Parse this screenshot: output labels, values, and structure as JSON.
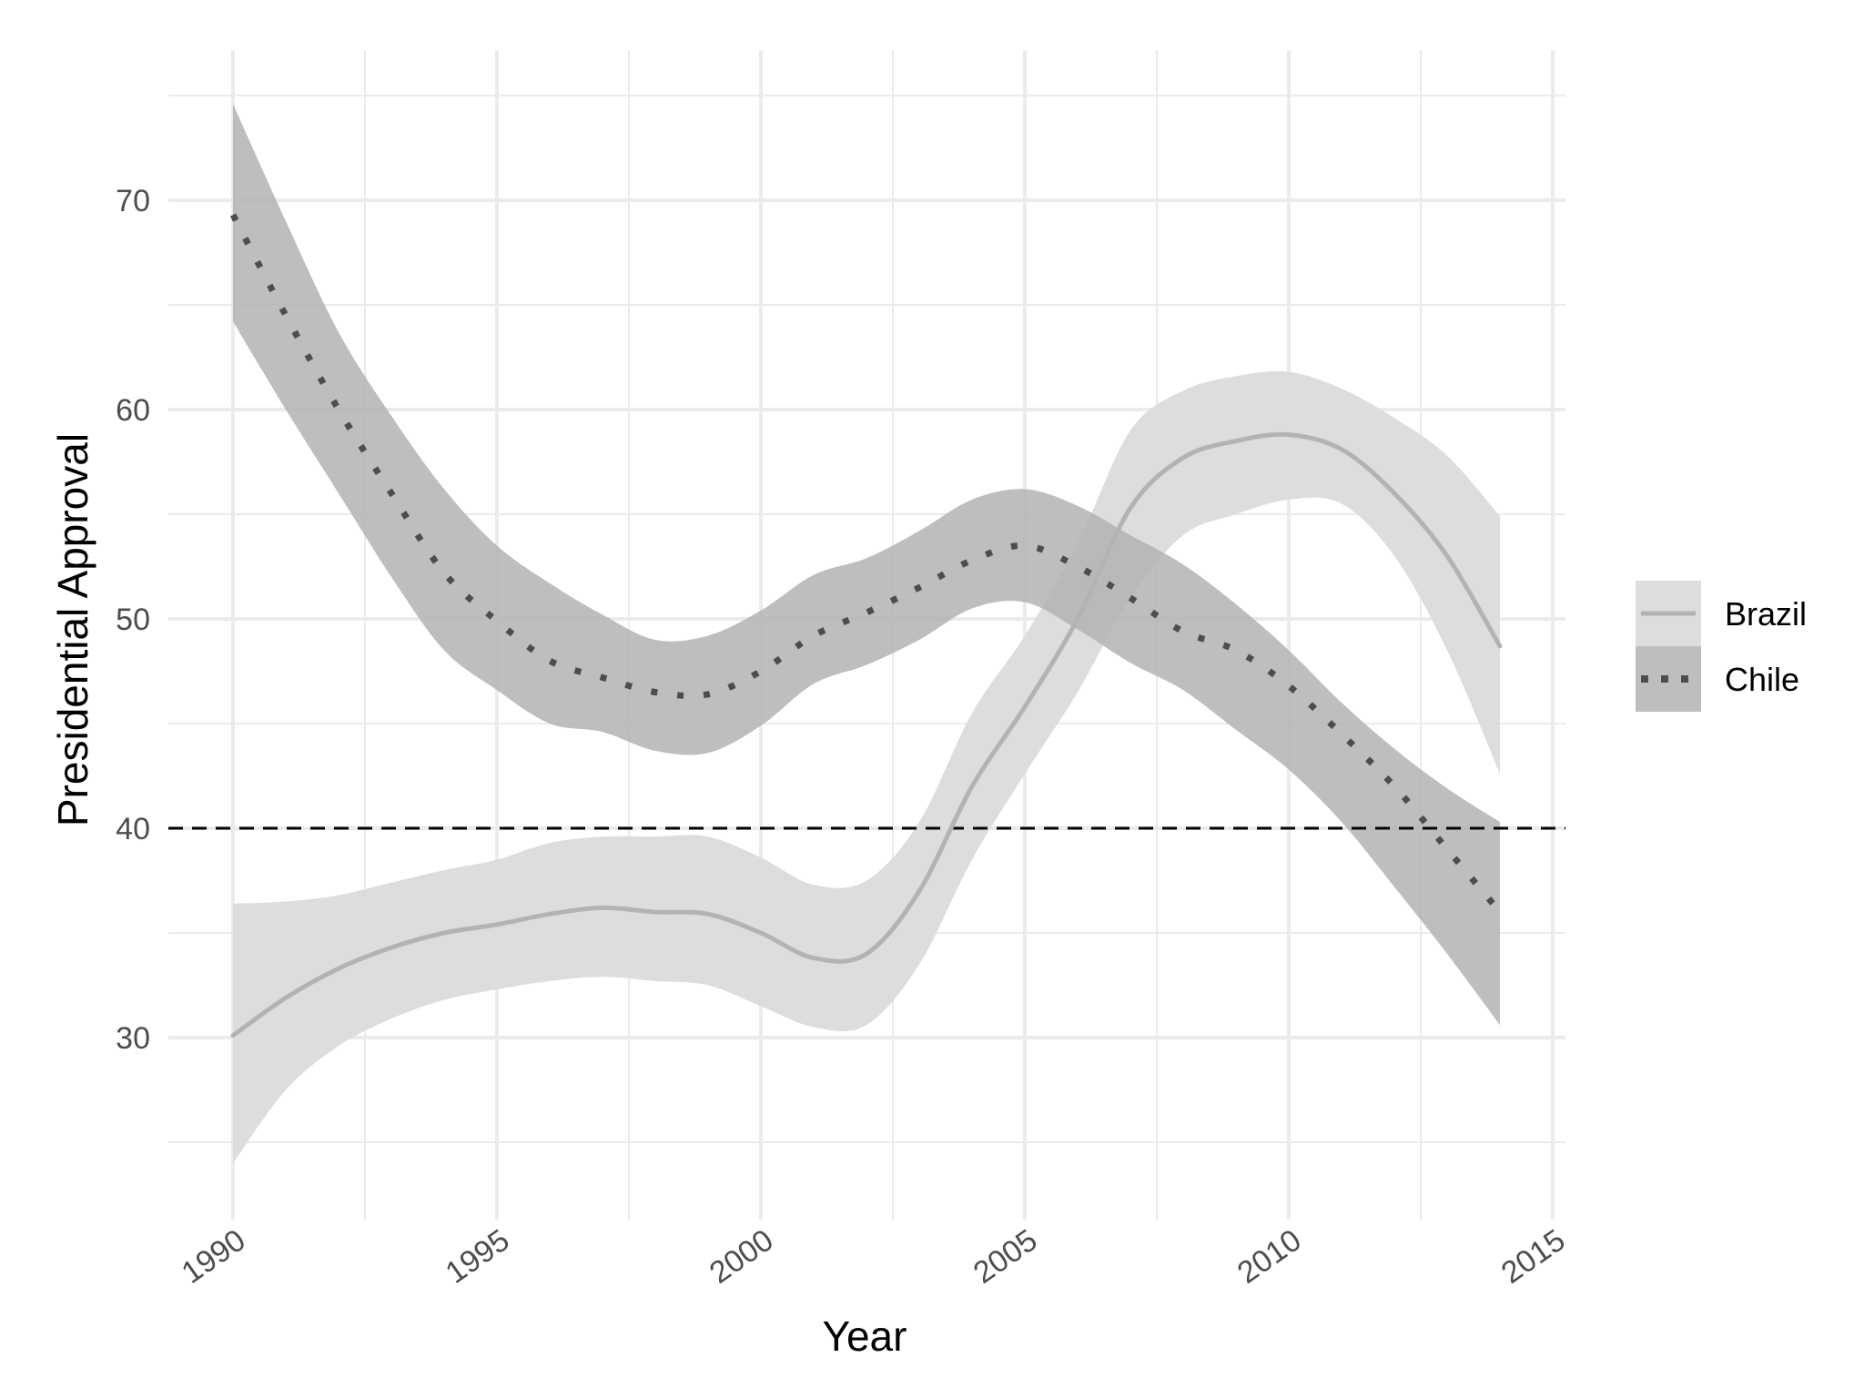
{
  "chart_data": {
    "type": "line",
    "xlabel": "Year",
    "ylabel": "Presidential Approval",
    "xlim": [
      1990,
      2015
    ],
    "ylim": [
      22,
      76
    ],
    "x_ticks": [
      1990,
      1995,
      2000,
      2005,
      2010,
      2015
    ],
    "y_ticks": [
      30,
      40,
      50,
      60,
      70
    ],
    "grid": true,
    "legend_position": "right",
    "reference_line": {
      "y": 40,
      "style": "dashed",
      "color": "#000000"
    },
    "series": [
      {
        "name": "Brazil",
        "line_style": "solid",
        "line_color": "#b3b3b3",
        "ribbon_color": "#dddddd",
        "x": [
          1990,
          1991,
          1992,
          1993,
          1994,
          1995,
          1996,
          1997,
          1998,
          1999,
          2000,
          2001,
          2002,
          2003,
          2004,
          2005,
          2006,
          2007,
          2008,
          2009,
          2010,
          2011,
          2012,
          2013,
          2014
        ],
        "y": [
          30.1,
          31.9,
          33.3,
          34.3,
          35.0,
          35.4,
          35.9,
          36.2,
          36.0,
          35.9,
          35.0,
          33.8,
          34.0,
          37.0,
          42.0,
          45.8,
          50.0,
          55.3,
          57.7,
          58.5,
          58.8,
          58.1,
          56.0,
          53.0,
          48.7
        ],
        "lower": [
          24.0,
          27.5,
          29.6,
          30.9,
          31.8,
          32.3,
          32.7,
          32.9,
          32.7,
          32.5,
          31.5,
          30.5,
          30.6,
          33.5,
          38.5,
          42.6,
          46.5,
          51.0,
          54.0,
          55.0,
          55.7,
          55.5,
          53.0,
          48.5,
          42.6
        ],
        "upper": [
          36.4,
          36.5,
          36.8,
          37.4,
          38.0,
          38.5,
          39.3,
          39.6,
          39.6,
          39.6,
          38.6,
          37.3,
          37.5,
          40.3,
          45.5,
          49.2,
          53.6,
          59.0,
          60.9,
          61.6,
          61.8,
          61.0,
          59.6,
          57.8,
          54.9
        ]
      },
      {
        "name": "Chile",
        "line_style": "dotted",
        "line_color": "#4d4d4d",
        "ribbon_color": "#b3b3b3",
        "x": [
          1990,
          1991,
          1992,
          1993,
          1994,
          1995,
          1996,
          1997,
          1998,
          1999,
          2000,
          2001,
          2002,
          2003,
          2004,
          2005,
          2006,
          2007,
          2008,
          2009,
          2010,
          2011,
          2012,
          2013,
          2014
        ],
        "y": [
          69.3,
          64.5,
          60.0,
          56.0,
          52.2,
          49.9,
          48.0,
          47.2,
          46.5,
          46.4,
          47.5,
          49.2,
          50.3,
          51.5,
          52.8,
          53.5,
          52.5,
          51.0,
          49.4,
          48.5,
          46.8,
          44.5,
          42.0,
          39.0,
          36.0
        ],
        "lower": [
          64.2,
          60.0,
          56.0,
          52.0,
          48.5,
          46.6,
          45.0,
          44.6,
          43.7,
          43.6,
          44.9,
          46.9,
          47.8,
          49.0,
          50.5,
          50.8,
          49.5,
          47.9,
          46.6,
          44.7,
          42.8,
          40.3,
          37.2,
          34.0,
          30.6
        ],
        "upper": [
          74.6,
          69.0,
          63.7,
          59.7,
          56.2,
          53.5,
          51.7,
          50.2,
          49.0,
          49.2,
          50.4,
          52.1,
          52.9,
          54.2,
          55.7,
          56.2,
          55.4,
          54.0,
          52.6,
          50.7,
          48.5,
          46.0,
          43.8,
          41.9,
          40.3
        ]
      }
    ]
  }
}
